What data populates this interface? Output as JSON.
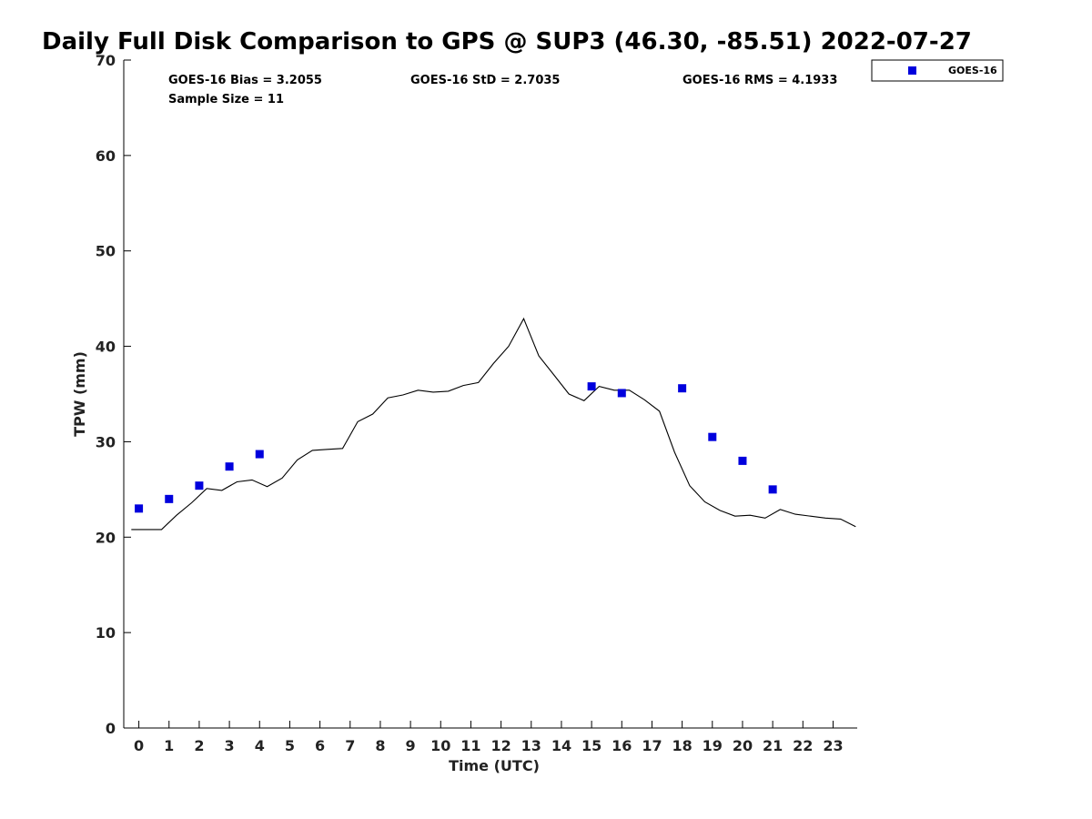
{
  "chart_data": {
    "type": "line",
    "title": "Daily Full Disk Comparison to GPS @ SUP3 (46.30, -85.51) 2022-07-27",
    "xlabel": "Time (UTC)",
    "ylabel": "TPW (mm)",
    "xlim": [
      -0.5,
      23.8
    ],
    "ylim": [
      0,
      70
    ],
    "x_ticks": [
      0,
      1,
      2,
      3,
      4,
      5,
      6,
      7,
      8,
      9,
      10,
      11,
      12,
      13,
      14,
      15,
      16,
      17,
      18,
      19,
      20,
      21,
      22,
      23
    ],
    "y_ticks": [
      0,
      10,
      20,
      30,
      40,
      50,
      60,
      70
    ],
    "grid": false,
    "legend_position": "top-right",
    "stats": {
      "bias": "GOES-16 Bias = 3.2055",
      "std": "GOES-16 StD = 2.7035",
      "rms": "GOES-16 RMS = 4.1933",
      "sample_size": "Sample Size = 11"
    },
    "series": [
      {
        "type": "line",
        "color": "#000000",
        "x": [
          -0.25,
          0.25,
          0.75,
          1.25,
          1.75,
          2.25,
          2.75,
          3.25,
          3.75,
          4.25,
          4.75,
          5.25,
          5.75,
          6.25,
          6.75,
          7.25,
          7.75,
          8.25,
          8.75,
          9.25,
          9.75,
          10.25,
          10.75,
          11.25,
          11.75,
          12.25,
          12.75,
          13.25,
          13.75,
          14.25,
          14.75,
          15.25,
          15.75,
          16.25,
          16.75,
          17.25,
          17.75,
          18.25,
          18.75,
          19.25,
          19.75,
          20.25,
          20.75,
          21.25,
          21.75,
          22.25,
          22.75,
          23.25,
          23.75
        ],
        "y": [
          20.8,
          20.8,
          20.8,
          22.3,
          23.6,
          25.1,
          24.9,
          25.8,
          26.0,
          25.3,
          26.2,
          28.1,
          29.1,
          29.2,
          29.3,
          32.1,
          32.9,
          34.6,
          34.9,
          35.4,
          35.2,
          35.3,
          35.9,
          36.2,
          38.2,
          40.0,
          42.9,
          39.0,
          37.0,
          35.0,
          34.3,
          35.8,
          35.4,
          35.4,
          34.4,
          33.2,
          28.9,
          25.4,
          23.7,
          22.8,
          22.2,
          22.3,
          22.0,
          22.9,
          22.4,
          22.2,
          22.0,
          21.9,
          21.1
        ]
      },
      {
        "name": "GOES-16",
        "type": "scatter",
        "color": "#0000dd",
        "x": [
          0,
          1,
          2,
          3,
          4,
          15,
          16,
          18,
          19,
          20,
          21
        ],
        "y": [
          23.0,
          24.0,
          25.4,
          27.4,
          28.7,
          35.8,
          35.1,
          35.6,
          30.5,
          28.0,
          25.0
        ]
      }
    ]
  }
}
